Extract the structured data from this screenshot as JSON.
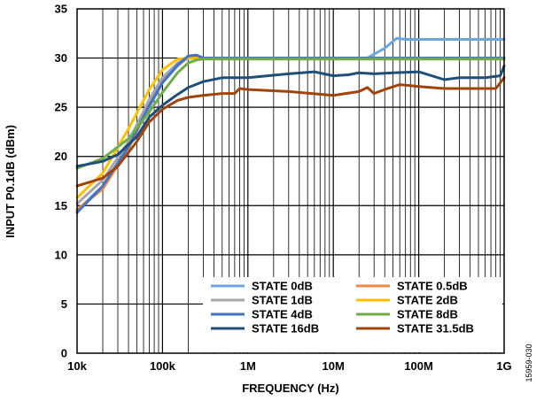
{
  "chart_data": {
    "type": "line",
    "xlabel": "FREQUENCY (Hz)",
    "ylabel": "INPUT P0.1dB (dBm)",
    "x_scale": "log",
    "xlim": [
      10000,
      1000000000
    ],
    "ylim": [
      0,
      35
    ],
    "grid": true,
    "legend_position": "bottom-right",
    "x_ticks": [
      {
        "value": 10000,
        "label": "10k"
      },
      {
        "value": 100000,
        "label": "100k"
      },
      {
        "value": 1000000,
        "label": "1M"
      },
      {
        "value": 10000000,
        "label": "10M"
      },
      {
        "value": 100000000,
        "label": "100M"
      },
      {
        "value": 1000000000,
        "label": "1G"
      }
    ],
    "y_ticks": [
      {
        "value": 0,
        "label": "0"
      },
      {
        "value": 5,
        "label": "5"
      },
      {
        "value": 10,
        "label": "10"
      },
      {
        "value": 15,
        "label": "15"
      },
      {
        "value": 20,
        "label": "20"
      },
      {
        "value": 25,
        "label": "25"
      },
      {
        "value": 30,
        "label": "30"
      },
      {
        "value": 35,
        "label": "35"
      }
    ],
    "series": [
      {
        "name": "STATE 0dB",
        "color": "#6aa7dc",
        "x": [
          10000,
          20000,
          40000,
          70000,
          100000,
          150000,
          200000,
          250000,
          300000,
          1000000,
          10000000,
          25000000,
          40000000,
          55000000,
          70000000,
          100000000,
          300000000,
          1000000000
        ],
        "y": [
          14.5,
          17,
          21,
          25,
          27.5,
          29.2,
          30.1,
          30.2,
          30,
          30,
          30,
          30,
          31,
          32,
          31.9,
          31.9,
          31.9,
          31.9
        ]
      },
      {
        "name": "STATE 0.5dB",
        "color": "#ef8a46",
        "x": [
          10000,
          20000,
          40000,
          70000,
          100000,
          150000,
          200000,
          250000,
          300000,
          1000000,
          10000000,
          100000000,
          1000000000
        ],
        "y": [
          14.6,
          16.7,
          20.8,
          25.2,
          27.6,
          29.3,
          30,
          30,
          30,
          30,
          30,
          30,
          30
        ]
      },
      {
        "name": "STATE 1dB",
        "color": "#a6a6a6",
        "x": [
          10000,
          20000,
          40000,
          70000,
          100000,
          150000,
          200000,
          250000,
          300000,
          1000000,
          10000000,
          100000000,
          1000000000
        ],
        "y": [
          15.2,
          17.6,
          21.5,
          25.8,
          28,
          29.5,
          30,
          30,
          30,
          30,
          30,
          30,
          30
        ]
      },
      {
        "name": "STATE 2dB",
        "color": "#ffc000",
        "x": [
          10000,
          20000,
          40000,
          70000,
          100000,
          150000,
          200000,
          250000,
          300000,
          1000000,
          10000000,
          100000000,
          1000000000
        ],
        "y": [
          15.8,
          18.3,
          22.8,
          26.8,
          28.8,
          29.9,
          30,
          30,
          30,
          30,
          30,
          30,
          30
        ]
      },
      {
        "name": "STATE 4dB",
        "color": "#4472c4",
        "x": [
          10000,
          20000,
          40000,
          70000,
          100000,
          150000,
          200000,
          250000,
          300000,
          1000000,
          10000000,
          100000000,
          1000000000
        ],
        "y": [
          14.3,
          17,
          21,
          25.2,
          27.5,
          29.3,
          30.2,
          30.3,
          30,
          30,
          30,
          30,
          30
        ]
      },
      {
        "name": "STATE 8dB",
        "color": "#70ad47",
        "x": [
          10000,
          20000,
          40000,
          70000,
          100000,
          150000,
          200000,
          250000,
          300000,
          1000000,
          10000000,
          100000000,
          1000000000
        ],
        "y": [
          18.8,
          19.8,
          21.8,
          24.5,
          26.5,
          28.5,
          29.5,
          29.8,
          29.9,
          29.9,
          29.9,
          29.9,
          29.9
        ]
      },
      {
        "name": "STATE 16dB",
        "color": "#1f4e79",
        "x": [
          10000,
          20000,
          30000,
          50000,
          70000,
          100000,
          150000,
          200000,
          300000,
          500000,
          700000,
          1000000,
          3000000,
          6000000,
          10000000,
          15000000,
          20000000,
          30000000,
          50000000,
          100000000,
          200000000,
          300000000,
          600000000,
          900000000,
          1000000000
        ],
        "y": [
          19,
          19.5,
          20.2,
          22,
          24,
          25.2,
          26.3,
          27,
          27.6,
          28,
          28,
          28,
          28.4,
          28.6,
          28.2,
          28.3,
          28.5,
          28.4,
          28.5,
          28.6,
          27.8,
          28,
          28,
          28.2,
          29.2
        ]
      },
      {
        "name": "STATE 31.5dB",
        "color": "#a0440c",
        "x": [
          10000,
          20000,
          30000,
          50000,
          70000,
          100000,
          150000,
          200000,
          300000,
          500000,
          700000,
          800000,
          1000000,
          3000000,
          10000000,
          20000000,
          25000000,
          30000000,
          40000000,
          60000000,
          80000000,
          100000000,
          200000000,
          500000000,
          800000000,
          1000000000
        ],
        "y": [
          17,
          17.8,
          19,
          21.5,
          23.5,
          24.8,
          25.7,
          26,
          26.2,
          26.4,
          26.4,
          26.9,
          26.8,
          26.6,
          26.2,
          26.6,
          27,
          26.4,
          26.8,
          27.3,
          27.2,
          27.1,
          26.9,
          26.9,
          26.9,
          28
        ]
      }
    ]
  },
  "figure_id": "15959-030"
}
